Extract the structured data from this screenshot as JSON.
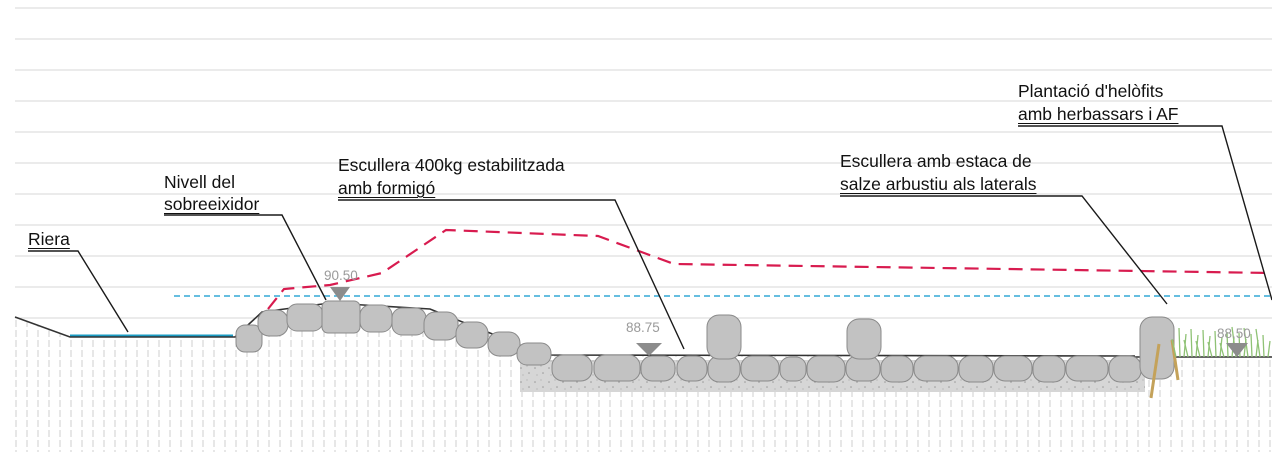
{
  "labels": {
    "riera": "Riera",
    "nivell_line1": "Nivell del",
    "nivell_line2": "sobreeixidor",
    "escullera400_line1": "Escullera 400kg estabilitzada",
    "escullera400_line2": "amb formigó",
    "escullera_estaca_line1": "Escullera amb estaca de",
    "escullera_estaca_line2": "salze arbustiu als laterals",
    "plantacio_line1": "Plantació d'helòfits",
    "plantacio_line2": "amb herbassars i AF"
  },
  "elevations": {
    "crest": "90.50",
    "bench": "88.75",
    "right": "88.50"
  },
  "colors": {
    "background": "#ffffff",
    "grid_lines": "#d7d7d7",
    "ground_hatch": "#cfcfcf",
    "terrain_outline": "#333333",
    "water_line": "#1a9cc4",
    "spillway_level": "#33a9d6",
    "design_profile": "#d81b4f",
    "rock": "#c2c2c2",
    "rock_outline": "#8a8a8a",
    "concrete": "#d8d8d8",
    "stakes": "#c4a25a",
    "vegetation": "#8fc275",
    "elevation_marker": "#8c8c8c",
    "leader_lines": "#1a1a1a"
  }
}
